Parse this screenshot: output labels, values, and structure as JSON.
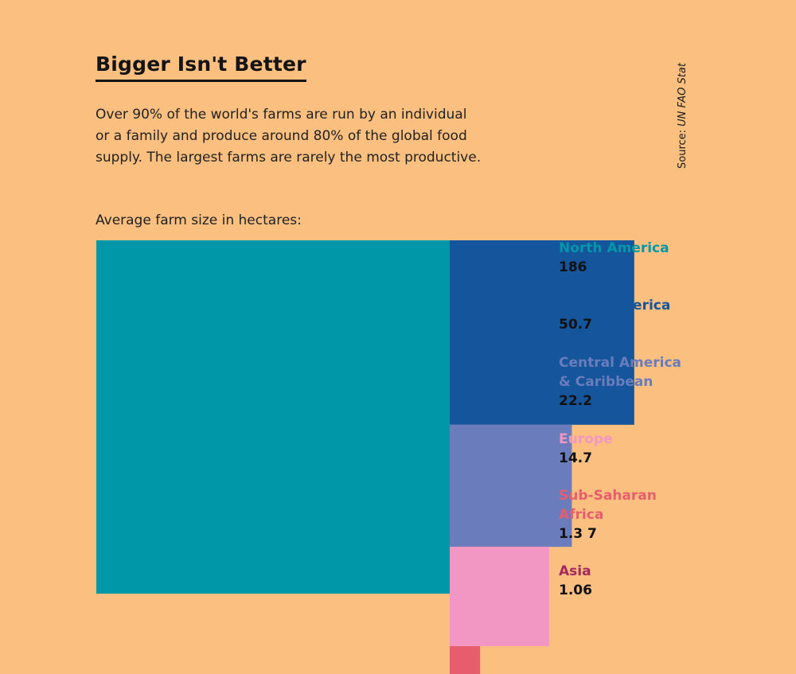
{
  "background": "#FBBF7F",
  "title": "Bigger Isn't Better",
  "subtitle": "Over 90% of the world's farms are run by an individual\nor a family and produce around 80% of the global food\nsupply. The largest farms are rarely the most productive.",
  "source": {
    "prefix": "Source: ",
    "name": "UN FAO Stat"
  },
  "chart_label": "Average farm size in hectares:",
  "chart_data": {
    "type": "bar",
    "encoding": "nested squares (area proportional to value)",
    "unit": "hectares",
    "categories": [
      "North America",
      "South America",
      "Central America & Caribbean",
      "Europe",
      "Sub-Saharan Africa",
      "Asia"
    ],
    "values": [
      186,
      50.7,
      22.2,
      14.7,
      1.37,
      1.06
    ],
    "title": "Bigger Isn't Better",
    "legend": [
      {
        "label": "North America",
        "value_text": "186",
        "color": "#0098A8"
      },
      {
        "label": "South America",
        "value_text": "50.7",
        "color": "#14559B"
      },
      {
        "label": "Central America\n& Caribbean",
        "value_text": "22.2",
        "color": "#6A7CBB"
      },
      {
        "label": "Europe",
        "value_text": "14.7",
        "color": "#F296C3"
      },
      {
        "label": "Sub-Saharan\nAfrica",
        "value_text": "1.3 7",
        "color": "#E85D6E"
      },
      {
        "label": "Asia",
        "value_text": "1.06",
        "color": "#A3285C"
      }
    ]
  }
}
